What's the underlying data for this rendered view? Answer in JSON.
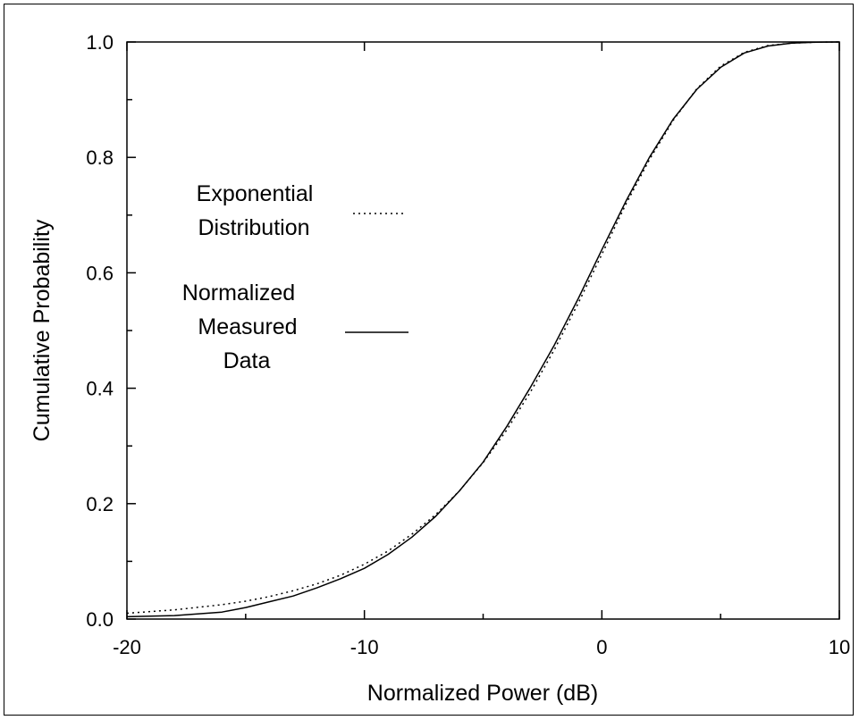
{
  "chart_data": {
    "type": "line",
    "title": "",
    "xlabel": "Normalized Power (dB)",
    "ylabel": "Cumulative Probability",
    "xlim": [
      -20,
      10
    ],
    "ylim": [
      0.0,
      1.0
    ],
    "x_major_ticks": [
      -20,
      -10,
      0,
      10
    ],
    "x_tick_labels": [
      "-20",
      "-10",
      "0",
      "10"
    ],
    "y_major_ticks": [
      0.0,
      0.2,
      0.4,
      0.6,
      0.8,
      1.0
    ],
    "y_tick_labels": [
      "0.0",
      "0.2",
      "0.4",
      "0.6",
      "0.8",
      "1.0"
    ],
    "grid": false,
    "legend_position": "left",
    "series": [
      {
        "name": "Exponential Distribution",
        "legend_lines": [
          "Exponential",
          "Distribution"
        ],
        "style": "dotted",
        "color": "#000000",
        "x": [
          -20,
          -18,
          -16,
          -15,
          -14,
          -13,
          -12,
          -11,
          -10,
          -9,
          -8,
          -7,
          -6,
          -5,
          -4,
          -3,
          -2,
          -1,
          0,
          1,
          2,
          3,
          4,
          5,
          6,
          7,
          8,
          9,
          10
        ],
        "y": [
          0.01,
          0.016,
          0.025,
          0.031,
          0.039,
          0.049,
          0.061,
          0.076,
          0.095,
          0.118,
          0.147,
          0.181,
          0.222,
          0.271,
          0.328,
          0.394,
          0.467,
          0.547,
          0.632,
          0.718,
          0.796,
          0.864,
          0.919,
          0.958,
          0.982,
          0.994,
          0.998,
          0.9996,
          1.0
        ]
      },
      {
        "name": "Normalized Measured Data",
        "legend_lines": [
          "Normalized",
          "Measured",
          "Data"
        ],
        "style": "solid",
        "color": "#000000",
        "x": [
          -20,
          -18,
          -16,
          -15,
          -14,
          -13,
          -12,
          -11,
          -10,
          -9,
          -8,
          -7,
          -6,
          -5,
          -4,
          -3,
          -2,
          -1,
          0,
          1,
          2,
          3,
          4,
          5,
          6,
          7,
          8,
          9,
          10
        ],
        "y": [
          0.004,
          0.006,
          0.012,
          0.02,
          0.03,
          0.04,
          0.054,
          0.07,
          0.088,
          0.112,
          0.142,
          0.178,
          0.222,
          0.272,
          0.334,
          0.402,
          0.475,
          0.555,
          0.64,
          0.723,
          0.8,
          0.866,
          0.918,
          0.956,
          0.981,
          0.993,
          0.998,
          0.9995,
          1.0
        ]
      }
    ]
  }
}
